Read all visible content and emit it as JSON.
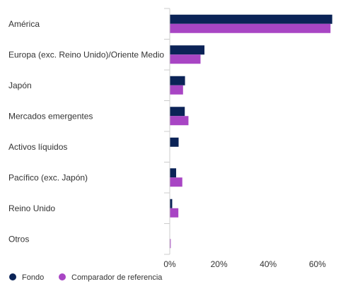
{
  "chart_data": {
    "type": "bar",
    "orientation": "horizontal",
    "categories": [
      "América",
      "Europa (exc. Reino Unido)/Oriente Medio",
      "Japón",
      "Mercados emergentes",
      "Activos líquidos",
      "Pacífico (exc. Japón)",
      "Reino Unido",
      "Otros"
    ],
    "series": [
      {
        "name": "Fondo",
        "color": "#0b2357",
        "values": [
          66.0,
          14.1,
          6.2,
          6.1,
          3.6,
          2.6,
          1.0,
          0.0
        ]
      },
      {
        "name": "Comparador de referencia",
        "color": "#a845c4",
        "values": [
          65.3,
          12.5,
          5.4,
          7.6,
          0.0,
          5.1,
          3.5,
          0.4
        ]
      }
    ],
    "x_ticks": [
      {
        "value": 0,
        "label": "0%"
      },
      {
        "value": 20,
        "label": "20%"
      },
      {
        "value": 40,
        "label": "40%"
      },
      {
        "value": 60,
        "label": "60%"
      }
    ],
    "xlim": [
      0,
      77
    ],
    "legend_position": "bottom-left",
    "grid": false
  }
}
